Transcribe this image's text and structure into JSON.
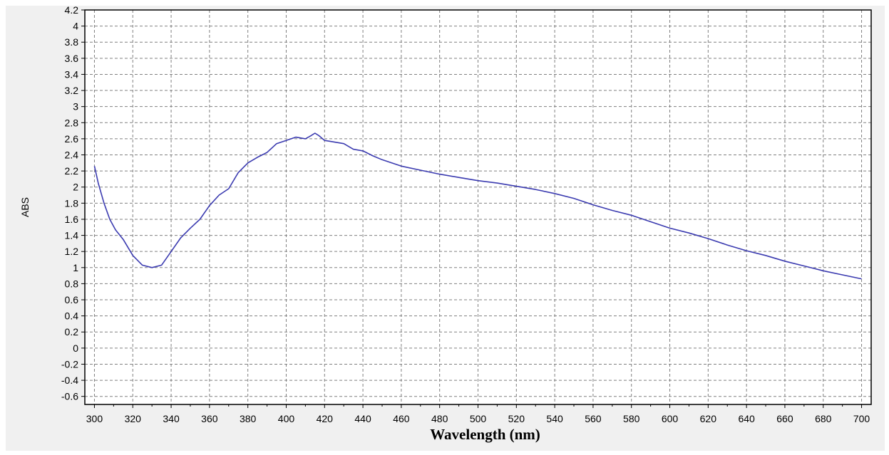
{
  "chart_data": {
    "type": "line",
    "title": "",
    "xlabel": "Wavelength (nm)",
    "ylabel": "ABS",
    "xlim": [
      295,
      705
    ],
    "ylim": [
      -0.7,
      4.2
    ],
    "grid": true,
    "x_ticks": [
      300,
      320,
      340,
      360,
      380,
      400,
      420,
      440,
      460,
      480,
      500,
      520,
      540,
      560,
      580,
      600,
      620,
      640,
      660,
      680,
      700
    ],
    "y_ticks": [
      4.2,
      4,
      3.8,
      3.6,
      3.4,
      3.2,
      3,
      2.8,
      2.6,
      2.4,
      2.2,
      2,
      1.8,
      1.6,
      1.4,
      1.2,
      1,
      0.8,
      0.6,
      0.4,
      0.2,
      0,
      -0.2,
      -0.4,
      -0.6
    ],
    "x_tick_labels": [
      "300",
      "320",
      "340",
      "360",
      "380",
      "400",
      "420",
      "440",
      "460",
      "480",
      "500",
      "520",
      "540",
      "560",
      "580",
      "600",
      "620",
      "640",
      "660",
      "680",
      "700"
    ],
    "y_tick_labels": [
      "4.2",
      "4",
      "3.8",
      "3.6",
      "3.4",
      "3.2",
      "3",
      "2.8",
      "2.6",
      "2.4",
      "2.2",
      "2",
      "1.8",
      "1.6",
      "1.4",
      "1.2",
      "1",
      "0.8",
      "0.6",
      "0.4",
      "0.2",
      "0",
      "-0.2",
      "-0.4",
      "-0.6"
    ],
    "series": [
      {
        "color": "#3b3bb0",
        "x": [
          300,
          302,
          305,
          308,
          311,
          315,
          320,
          325,
          330,
          335,
          340,
          345,
          350,
          355,
          360,
          365,
          370,
          375,
          380,
          385,
          390,
          395,
          400,
          405,
          410,
          413,
          415,
          417,
          420,
          425,
          430,
          435,
          440,
          445,
          450,
          460,
          470,
          480,
          490,
          500,
          510,
          520,
          530,
          540,
          550,
          555,
          560,
          570,
          580,
          590,
          600,
          610,
          620,
          630,
          640,
          650,
          660,
          670,
          680,
          690,
          700
        ],
        "y": [
          2.26,
          2.05,
          1.8,
          1.6,
          1.47,
          1.35,
          1.15,
          1.03,
          1.0,
          1.03,
          1.2,
          1.37,
          1.49,
          1.6,
          1.77,
          1.9,
          1.98,
          2.18,
          2.3,
          2.37,
          2.43,
          2.54,
          2.58,
          2.62,
          2.6,
          2.64,
          2.67,
          2.64,
          2.58,
          2.56,
          2.54,
          2.47,
          2.45,
          2.39,
          2.34,
          2.26,
          2.21,
          2.16,
          2.12,
          2.08,
          2.05,
          2.01,
          1.97,
          1.92,
          1.86,
          1.82,
          1.78,
          1.71,
          1.65,
          1.57,
          1.49,
          1.43,
          1.36,
          1.28,
          1.21,
          1.15,
          1.08,
          1.02,
          0.96,
          0.91,
          0.86
        ]
      }
    ]
  }
}
